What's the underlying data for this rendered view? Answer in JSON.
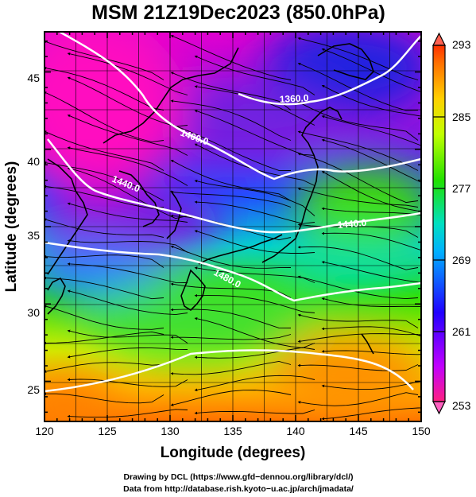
{
  "title": "MSM 21Z19Dec2023 (850.0hPa)",
  "x_axis": {
    "label": "Longitude (degrees)",
    "range": [
      120,
      150
    ],
    "ticks": [
      "120",
      "125",
      "130",
      "135",
      "140",
      "145",
      "150"
    ]
  },
  "y_axis": {
    "label": "Latitude  (degrees)",
    "range": [
      22.4,
      47.6
    ],
    "ticks": [
      "25",
      "30",
      "35",
      "40",
      "45"
    ]
  },
  "colorbar": {
    "range": [
      253,
      293
    ],
    "ticks": [
      "293",
      "285",
      "277",
      "269",
      "261",
      "253"
    ],
    "colors": [
      "#ff2080",
      "#c000ff",
      "#2000ff",
      "#00b0ff",
      "#00e0c0",
      "#20e000",
      "#c0ff00",
      "#ffd000",
      "#ff7000",
      "#ff3000"
    ]
  },
  "contour_labels": [
    "1360.0",
    "1400.0",
    "1440.0",
    "1440.0",
    "1480.0"
  ],
  "credits": {
    "line1": "Drawing by DCL (https://www.gfd−dennou.org/library/dcl/)",
    "line2": "Data from http://database.rish.kyoto−u.ac.jp/arch/jmadata/"
  }
}
